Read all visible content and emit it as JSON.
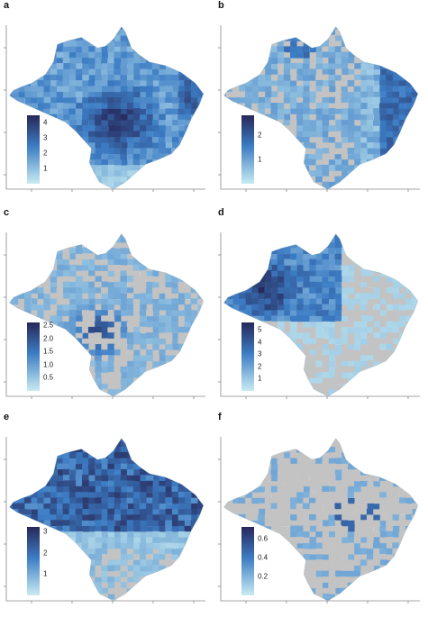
{
  "colors": {
    "dark": "#272859",
    "mid": "#3c7cc4",
    "light": "#c8ecf2",
    "na": "#c3c3c3",
    "axis": "#888888"
  },
  "panels": [
    {
      "label": "a",
      "colorbar": {
        "ticks": [
          "4",
          "3",
          "2",
          "1"
        ],
        "max": 4.5,
        "values": [
          4,
          3,
          2,
          1
        ]
      },
      "pattern": "south-central"
    },
    {
      "label": "b",
      "colorbar": {
        "ticks": [
          "2",
          "1"
        ],
        "max": 2.8,
        "values": [
          2,
          1
        ]
      },
      "pattern": "coast"
    },
    {
      "label": "c",
      "colorbar": {
        "ticks": [
          "2.5",
          "2.0",
          "1.5",
          "1.0",
          "0.5"
        ],
        "max": 2.6,
        "values": [
          2.5,
          2.0,
          1.5,
          1.0,
          0.5
        ]
      },
      "pattern": "west-central"
    },
    {
      "label": "d",
      "colorbar": {
        "ticks": [
          "5",
          "4",
          "3",
          "2",
          "1"
        ],
        "max": 5.6,
        "values": [
          5,
          4,
          3,
          2,
          1
        ]
      },
      "pattern": "northwest"
    },
    {
      "label": "e",
      "colorbar": {
        "ticks": [
          "3",
          "2",
          "1"
        ],
        "max": 3.2,
        "values": [
          3,
          2,
          1
        ]
      },
      "pattern": "north"
    },
    {
      "label": "f",
      "colorbar": {
        "ticks": [
          "0.6",
          "0.4",
          "0.2"
        ],
        "max": 0.72,
        "values": [
          0.6,
          0.4,
          0.2
        ]
      },
      "pattern": "sparse"
    }
  ]
}
